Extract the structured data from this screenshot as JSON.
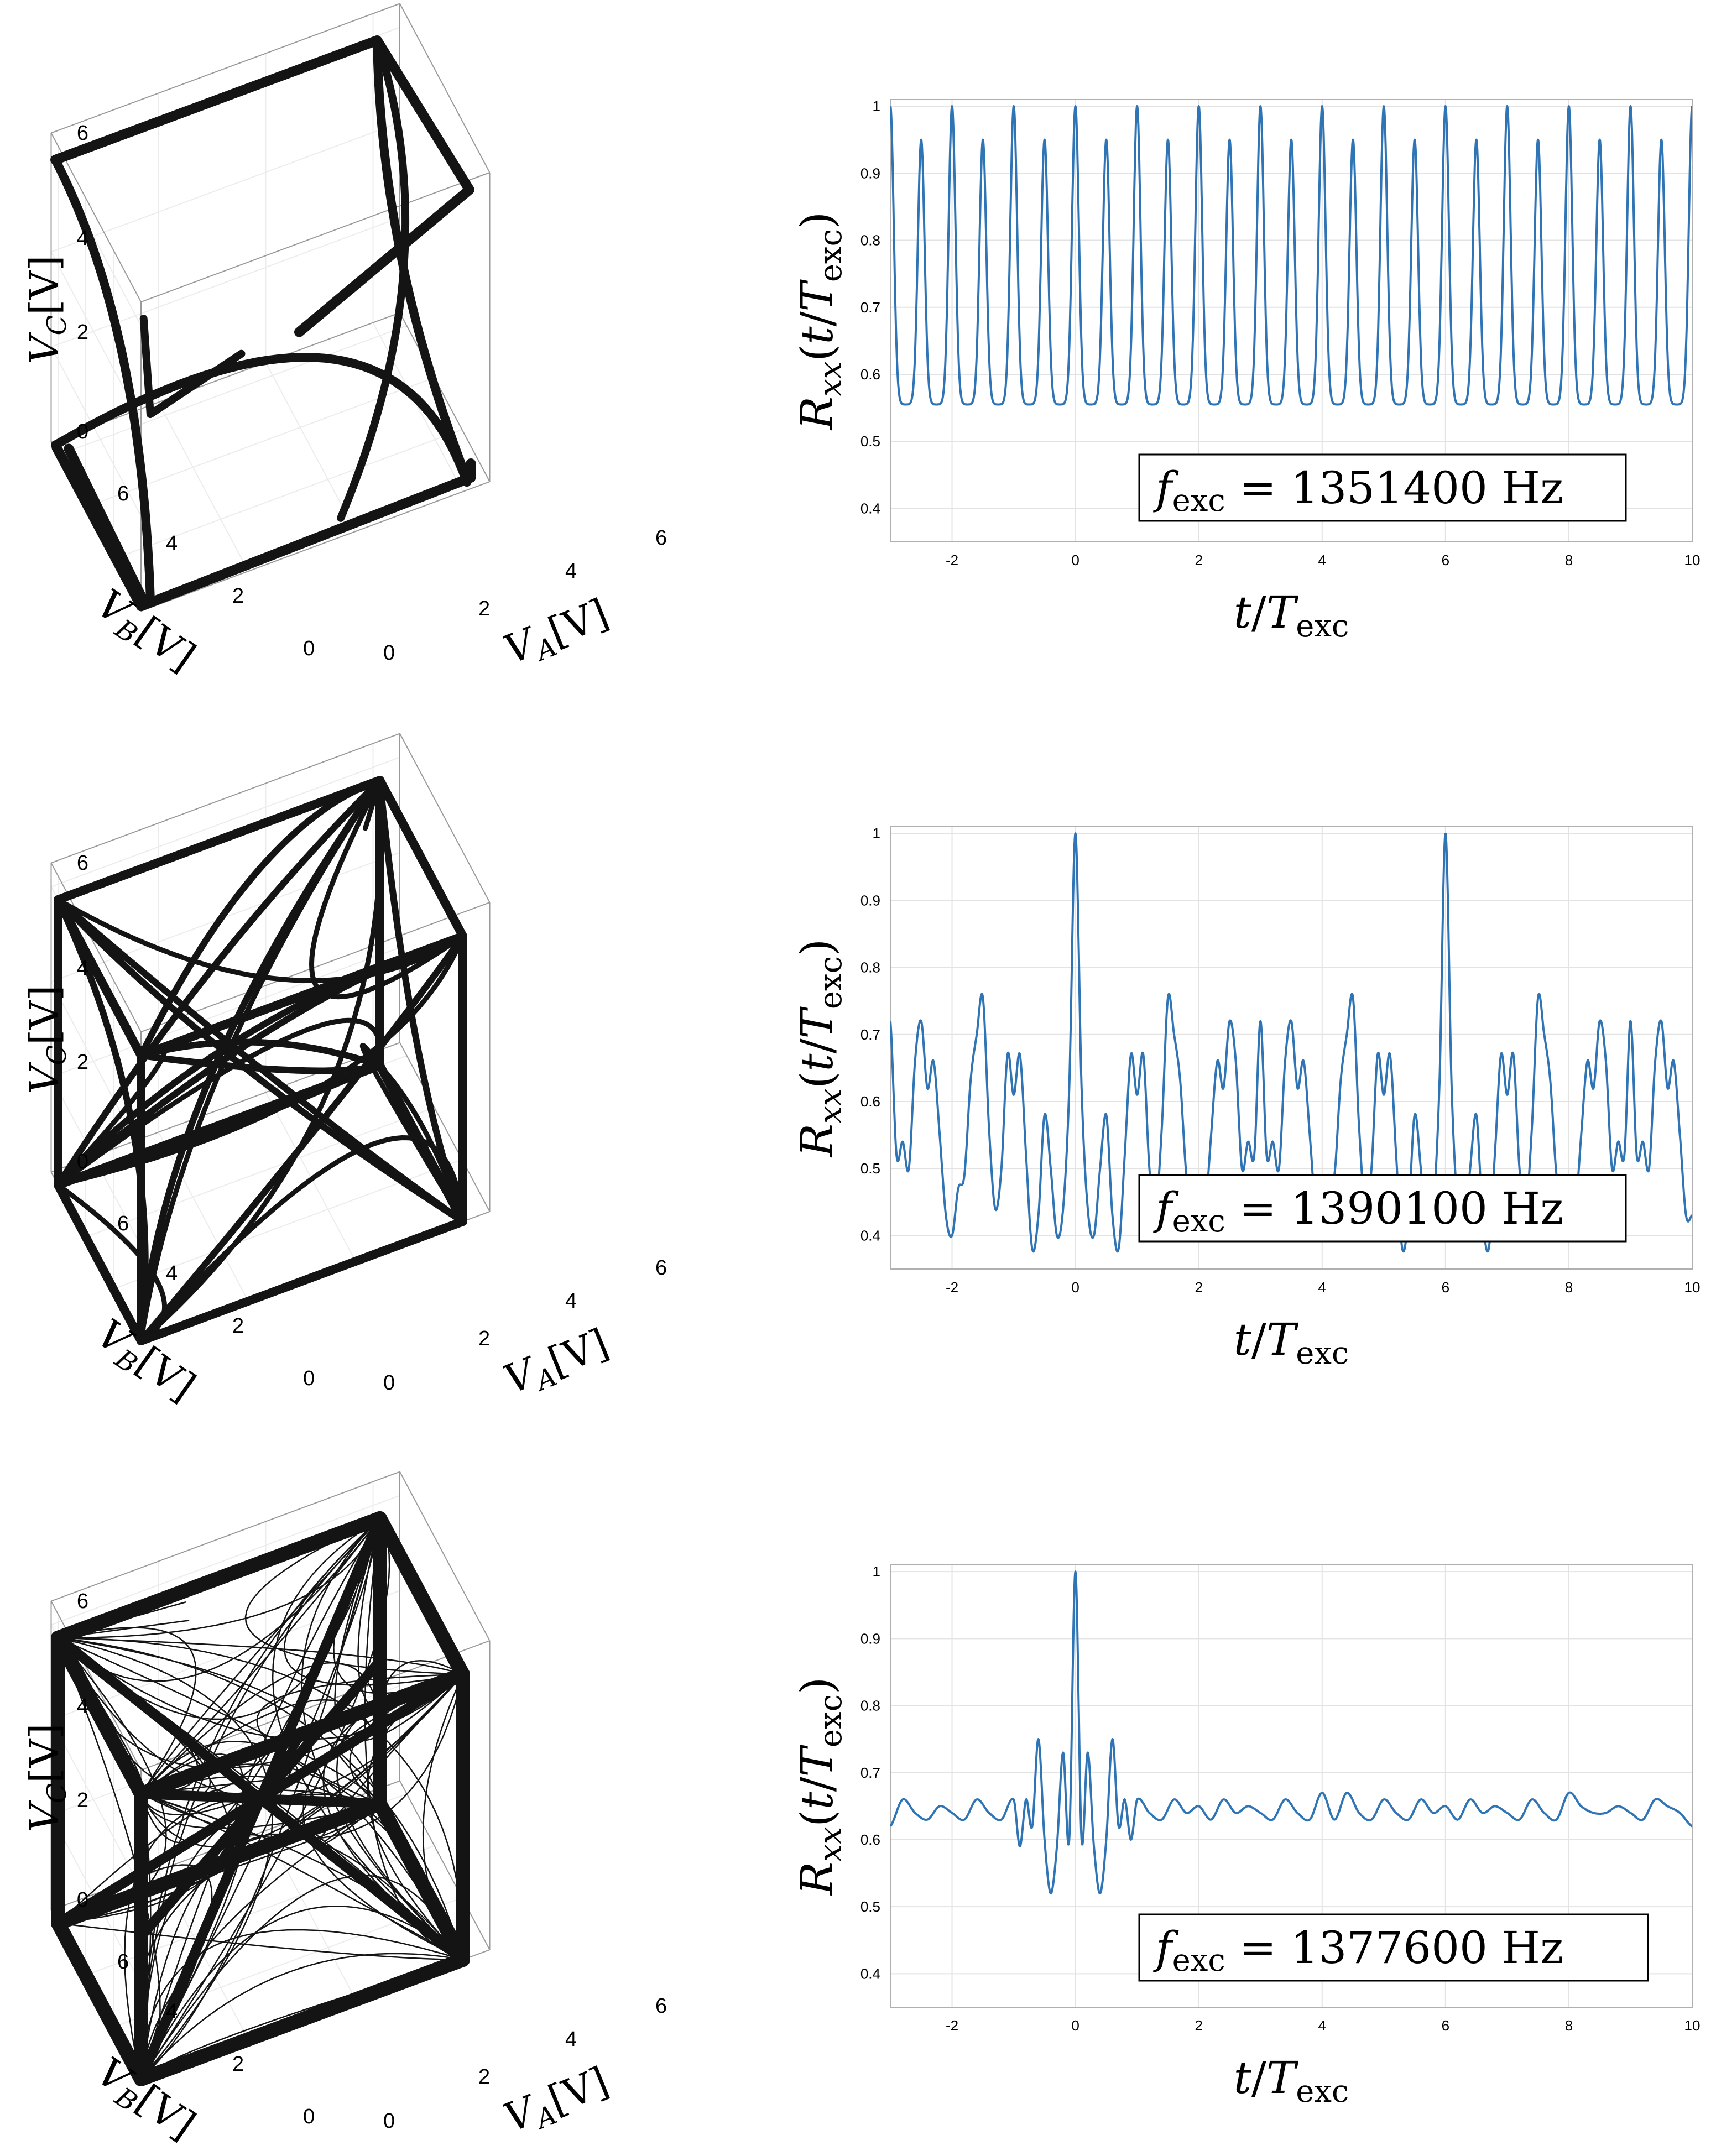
{
  "figure": {
    "rows": [
      {
        "attractor": {
          "xlabel": {
            "main": "V",
            "sub": "A",
            "suffix": "[V]"
          },
          "ylabel": {
            "main": "V",
            "sub": "B",
            "suffix": "[V]"
          },
          "zlabel": {
            "main": "V",
            "sub": "C",
            "suffix": "[V]"
          },
          "xticks": [
            "0",
            "2",
            "4",
            "6"
          ],
          "yticks": [
            "0",
            "2",
            "4",
            "6"
          ],
          "zticks": [
            "0",
            "2",
            "4",
            "6"
          ],
          "style": "periodic",
          "marker_color": "#141414"
        },
        "autocorr_label": {
          "f": "f",
          "sub": "exc",
          "rest": " = 1351400 Hz"
        }
      },
      {
        "attractor": {
          "xlabel": {
            "main": "V",
            "sub": "A",
            "suffix": "[V]"
          },
          "ylabel": {
            "main": "V",
            "sub": "B",
            "suffix": "[V]"
          },
          "zlabel": {
            "main": "V",
            "sub": "C",
            "suffix": "[V]"
          },
          "xticks": [
            "0",
            "2",
            "4",
            "6"
          ],
          "yticks": [
            "0",
            "2",
            "4",
            "6"
          ],
          "zticks": [
            "0",
            "2",
            "4",
            "6"
          ],
          "style": "quasiperiodic",
          "marker_color": "#141414"
        },
        "autocorr_label": {
          "f": "f",
          "sub": "exc",
          "rest": " = 1390100 Hz"
        }
      },
      {
        "attractor": {
          "xlabel": {
            "main": "V",
            "sub": "A",
            "suffix": "[V]"
          },
          "ylabel": {
            "main": "V",
            "sub": "B",
            "suffix": "[V]"
          },
          "zlabel": {
            "main": "V",
            "sub": "C",
            "suffix": "[V]"
          },
          "xticks": [
            "0",
            "2",
            "4",
            "6"
          ],
          "yticks": [
            "0",
            "2",
            "4",
            "6"
          ],
          "zticks": [
            "0",
            "2",
            "4",
            "6"
          ],
          "style": "chaotic",
          "marker_color": "#141414"
        },
        "autocorr_label": {
          "f": "f",
          "sub": "exc",
          "rest": " = 1377600 Hz"
        }
      }
    ]
  },
  "chart_data": [
    {
      "type": "line",
      "title": "",
      "xlabel": "t/T_exc",
      "ylabel": "R_xx(t/T_exc)",
      "xlim": [
        -3,
        10
      ],
      "ylim": [
        0.35,
        1.01
      ],
      "xticks": [
        -2,
        0,
        2,
        4,
        6,
        8,
        10
      ],
      "yticks": [
        0.4,
        0.5,
        0.6,
        0.7,
        0.8,
        0.9,
        1
      ],
      "series_color": "#2f74b5",
      "pattern": "peaks every 0.5 period, alternating 1.0 and 0.95, troughs at 0.555",
      "series": [
        {
          "name": "R_xx",
          "x": [
            -3,
            -2.5,
            -2,
            -1.5,
            -1,
            -0.5,
            0,
            0.5,
            1,
            1.5,
            2,
            2.5,
            3,
            3.5,
            4,
            4.5,
            5,
            5.5,
            6,
            6.5,
            7,
            7.5,
            8,
            8.5,
            9,
            9.5,
            10
          ],
          "values": [
            1.0,
            0.95,
            1.0,
            0.95,
            1.0,
            0.95,
            1.0,
            0.95,
            1.0,
            0.95,
            1.0,
            0.95,
            1.0,
            0.95,
            1.0,
            0.95,
            1.0,
            0.95,
            1.0,
            0.95,
            1.0,
            0.95,
            1.0,
            0.95,
            1.0,
            0.95,
            1.0
          ],
          "trough": 0.555
        }
      ]
    },
    {
      "type": "line",
      "title": "",
      "xlabel": "t/T_exc",
      "ylabel": "R_xx(t/T_exc)",
      "xlim": [
        -3,
        10
      ],
      "ylim": [
        0.35,
        1.01
      ],
      "xticks": [
        -2,
        0,
        2,
        4,
        6,
        8,
        10
      ],
      "yticks": [
        0.4,
        0.5,
        0.6,
        0.7,
        0.8,
        0.9,
        1
      ],
      "series_color": "#2f74b5",
      "series": [
        {
          "name": "R_xx",
          "x": [
            -3,
            -2.9,
            -2.8,
            -2.7,
            -2.6,
            -2.5,
            -2.4,
            -2.3,
            -2.2,
            -2.1,
            -2.0,
            -1.9,
            -1.8,
            -1.7,
            -1.6,
            -1.5,
            -1.4,
            -1.3,
            -1.2,
            -1.1,
            -1.0,
            -0.9,
            -0.8,
            -0.7,
            -0.6,
            -0.5,
            -0.4,
            -0.3,
            -0.2,
            -0.1,
            0.0,
            0.1,
            0.2,
            0.3,
            0.4,
            0.5,
            0.6,
            0.7,
            0.8,
            0.9,
            1.0,
            1.1,
            1.2,
            1.3,
            1.4,
            1.5,
            1.6,
            1.7,
            1.8,
            1.9,
            2.0,
            2.1,
            2.2,
            2.3,
            2.4,
            2.5,
            2.6,
            2.7,
            2.8,
            2.9,
            3.0,
            3.1,
            3.2,
            3.3,
            3.4,
            3.5,
            3.6,
            3.7,
            3.8,
            3.9,
            4.0,
            4.1,
            4.2,
            4.3,
            4.4,
            4.5,
            4.6,
            4.7,
            4.8,
            4.9,
            5.0,
            5.1,
            5.2,
            5.3,
            5.4,
            5.5,
            5.6,
            5.7,
            5.8,
            5.9,
            6.0,
            6.1,
            6.2,
            6.3,
            6.4,
            6.5,
            6.6,
            6.7,
            6.8,
            6.9,
            7.0,
            7.1,
            7.2,
            7.3,
            7.4,
            7.5,
            7.6,
            7.7,
            7.8,
            7.9,
            8.0,
            8.1,
            8.2,
            8.3,
            8.4,
            8.5,
            8.6,
            8.7,
            8.8,
            8.9,
            9.0,
            9.1,
            9.2,
            9.3,
            9.4,
            9.5,
            9.6,
            9.7,
            9.8,
            9.9,
            10.0
          ],
          "values": [
            0.72,
            0.52,
            0.54,
            0.5,
            0.66,
            0.72,
            0.62,
            0.66,
            0.55,
            0.43,
            0.4,
            0.47,
            0.49,
            0.63,
            0.7,
            0.755,
            0.56,
            0.44,
            0.5,
            0.67,
            0.61,
            0.67,
            0.52,
            0.38,
            0.43,
            0.58,
            0.5,
            0.4,
            0.44,
            0.62,
            1.0,
            0.62,
            0.44,
            0.4,
            0.5,
            0.58,
            0.43,
            0.38,
            0.52,
            0.67,
            0.61,
            0.67,
            0.5,
            0.44,
            0.56,
            0.755,
            0.7,
            0.63,
            0.49,
            0.47,
            0.4,
            0.43,
            0.55,
            0.66,
            0.62,
            0.72,
            0.66,
            0.5,
            0.54,
            0.52,
            0.72,
            0.52,
            0.54,
            0.5,
            0.66,
            0.72,
            0.62,
            0.66,
            0.55,
            0.43,
            0.4,
            0.47,
            0.49,
            0.63,
            0.7,
            0.755,
            0.56,
            0.44,
            0.5,
            0.67,
            0.61,
            0.67,
            0.52,
            0.38,
            0.43,
            0.58,
            0.5,
            0.4,
            0.44,
            0.62,
            1.0,
            0.62,
            0.44,
            0.4,
            0.5,
            0.58,
            0.43,
            0.38,
            0.52,
            0.67,
            0.61,
            0.67,
            0.5,
            0.44,
            0.56,
            0.755,
            0.7,
            0.63,
            0.49,
            0.47,
            0.4,
            0.43,
            0.55,
            0.66,
            0.62,
            0.72,
            0.66,
            0.5,
            0.54,
            0.52,
            0.72,
            0.52,
            0.54,
            0.5,
            0.66,
            0.72,
            0.62,
            0.66,
            0.55,
            0.43,
            0.43
          ]
        }
      ]
    },
    {
      "type": "line",
      "title": "",
      "xlabel": "t/T_exc",
      "ylabel": "R_xx(t/T_exc)",
      "xlim": [
        -3,
        10
      ],
      "ylim": [
        0.35,
        1.01
      ],
      "xticks": [
        -2,
        0,
        2,
        4,
        6,
        8,
        10
      ],
      "yticks": [
        0.4,
        0.5,
        0.6,
        0.7,
        0.8,
        0.9,
        1
      ],
      "series_color": "#2f74b5",
      "series": [
        {
          "name": "R_xx",
          "x": [
            -3.0,
            -2.8,
            -2.6,
            -2.4,
            -2.2,
            -2.0,
            -1.8,
            -1.6,
            -1.4,
            -1.2,
            -1.0,
            -0.9,
            -0.8,
            -0.7,
            -0.6,
            -0.5,
            -0.4,
            -0.3,
            -0.2,
            -0.1,
            0.0,
            0.1,
            0.2,
            0.3,
            0.4,
            0.5,
            0.6,
            0.7,
            0.8,
            0.9,
            1.0,
            1.2,
            1.4,
            1.6,
            1.8,
            2.0,
            2.2,
            2.4,
            2.6,
            2.8,
            3.0,
            3.2,
            3.4,
            3.6,
            3.8,
            4.0,
            4.2,
            4.4,
            4.6,
            4.8,
            5.0,
            5.2,
            5.4,
            5.6,
            5.8,
            6.0,
            6.2,
            6.4,
            6.6,
            6.8,
            7.0,
            7.2,
            7.4,
            7.6,
            7.8,
            8.0,
            8.2,
            8.4,
            8.6,
            8.8,
            9.0,
            9.2,
            9.4,
            9.6,
            9.8,
            10.0
          ],
          "values": [
            0.62,
            0.66,
            0.64,
            0.63,
            0.65,
            0.64,
            0.63,
            0.66,
            0.64,
            0.63,
            0.66,
            0.59,
            0.66,
            0.62,
            0.75,
            0.6,
            0.52,
            0.59,
            0.73,
            0.6,
            1.0,
            0.6,
            0.73,
            0.59,
            0.52,
            0.6,
            0.75,
            0.62,
            0.66,
            0.6,
            0.66,
            0.64,
            0.63,
            0.66,
            0.64,
            0.65,
            0.63,
            0.66,
            0.64,
            0.65,
            0.64,
            0.63,
            0.66,
            0.64,
            0.63,
            0.67,
            0.63,
            0.67,
            0.64,
            0.63,
            0.66,
            0.64,
            0.63,
            0.66,
            0.64,
            0.65,
            0.63,
            0.66,
            0.64,
            0.65,
            0.64,
            0.63,
            0.66,
            0.64,
            0.63,
            0.67,
            0.65,
            0.64,
            0.64,
            0.65,
            0.64,
            0.63,
            0.66,
            0.65,
            0.64,
            0.62
          ]
        }
      ]
    }
  ]
}
